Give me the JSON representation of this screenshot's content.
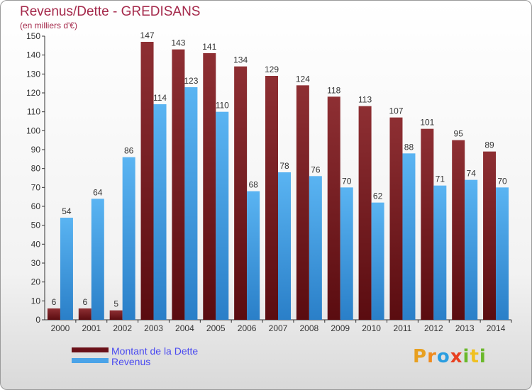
{
  "title": "Revenus/Dette - GREDISANS",
  "subtitle": "(en milliers d'€)",
  "legend": {
    "dette_label": "Montant de la Dette",
    "revenus_label": "Revenus"
  },
  "logo": {
    "text": "Proxiti"
  },
  "colors": {
    "dette": "#7a1f25",
    "revenus": "#4aa3e8",
    "title": "#a4284a",
    "legend_text": "#4a4af0"
  },
  "chart_data": {
    "type": "bar",
    "categories": [
      "2000",
      "2001",
      "2002",
      "2003",
      "2004",
      "2005",
      "2006",
      "2007",
      "2008",
      "2009",
      "2010",
      "2011",
      "2012",
      "2013",
      "2014"
    ],
    "series": [
      {
        "name": "Montant de la Dette",
        "values": [
          6,
          6,
          5,
          147,
          143,
          141,
          134,
          129,
          124,
          118,
          113,
          107,
          101,
          95,
          89
        ]
      },
      {
        "name": "Revenus",
        "values": [
          54,
          64,
          86,
          114,
          123,
          110,
          68,
          78,
          76,
          70,
          62,
          88,
          71,
          74,
          70
        ]
      }
    ],
    "ylim": [
      0,
      150
    ],
    "yticks": [
      0,
      10,
      20,
      30,
      40,
      50,
      60,
      70,
      80,
      90,
      100,
      110,
      120,
      130,
      140,
      150
    ],
    "grid": false,
    "legend_position": "bottom-left"
  }
}
